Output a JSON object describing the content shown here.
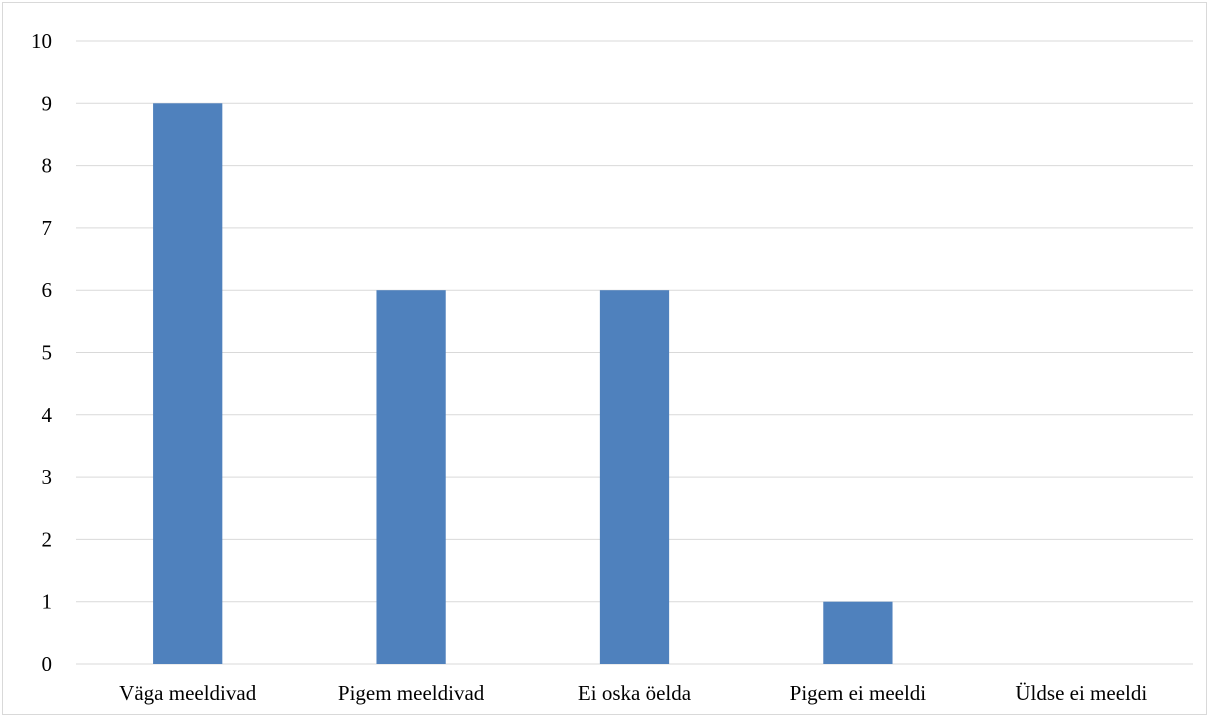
{
  "chart_data": {
    "type": "bar",
    "categories": [
      "Väga meeldivad",
      "Pigem meeldivad",
      "Ei oska öelda",
      "Pigem ei meeldi",
      "Üldse ei meeldi"
    ],
    "values": [
      9,
      6,
      6,
      1,
      0
    ],
    "title": "",
    "xlabel": "",
    "ylabel": "",
    "ylim": [
      0,
      10
    ],
    "yticks": [
      "0",
      "1",
      "2",
      "3",
      "4",
      "5",
      "6",
      "7",
      "8",
      "9",
      "10"
    ],
    "grid": true,
    "legend": "none",
    "bar_color": "#4f81bd",
    "grid_color": "#d9d9d9"
  }
}
